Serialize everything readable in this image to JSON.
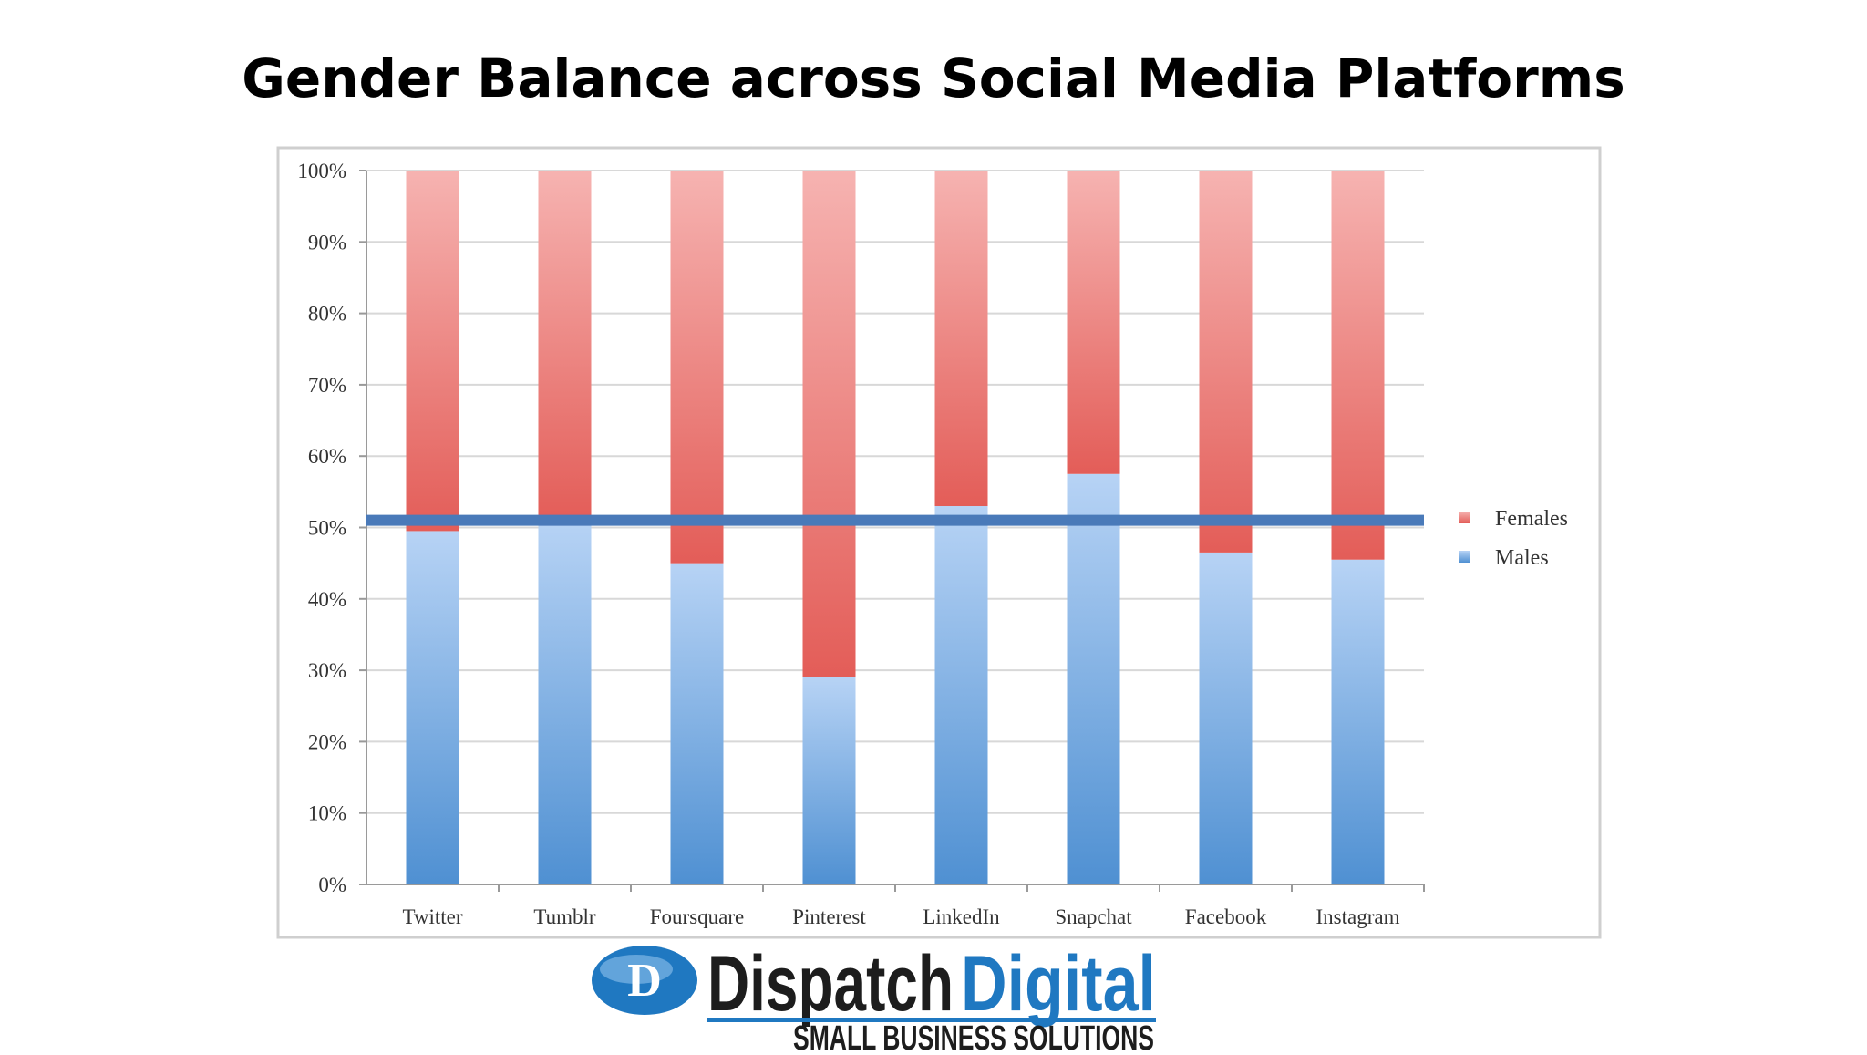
{
  "page": {
    "title": "Gender Balance across Social Media Platforms"
  },
  "colors": {
    "female_top": "#f6b3b1",
    "female_bottom": "#e35d58",
    "male_top": "#b7d3f5",
    "male_bottom": "#4f90d2",
    "reference_line": "#4a7ab9",
    "grid": "#d8d8d8",
    "logo_dark": "#1d1d1d",
    "logo_blue": "#1f78c1"
  },
  "chart_data": {
    "type": "bar",
    "stacked": true,
    "categories": [
      "Twitter",
      "Tumblr",
      "Foursquare",
      "Pinterest",
      "LinkedIn",
      "Snapchat",
      "Facebook",
      "Instagram"
    ],
    "series": [
      {
        "name": "Males",
        "values": [
          49.5,
          51,
          45,
          29,
          53,
          57.5,
          46.5,
          45.5
        ],
        "color": "#4f90d2"
      },
      {
        "name": "Females",
        "values": [
          50.5,
          49,
          55,
          71,
          47,
          42.5,
          53.5,
          54.5
        ],
        "color": "#e35d58"
      }
    ],
    "reference_line": {
      "y": 51
    },
    "y_ticks": [
      "0%",
      "10%",
      "20%",
      "30%",
      "40%",
      "50%",
      "60%",
      "70%",
      "80%",
      "90%",
      "100%"
    ],
    "ylim": [
      0,
      100
    ],
    "grid": true,
    "legend": {
      "position": "right",
      "entries": [
        "Females",
        "Males"
      ]
    }
  },
  "logo": {
    "brand_dark": "Dispatch",
    "brand_blue": "Digital",
    "tagline": "SMALL BUSINESS SOLUTIONS"
  }
}
